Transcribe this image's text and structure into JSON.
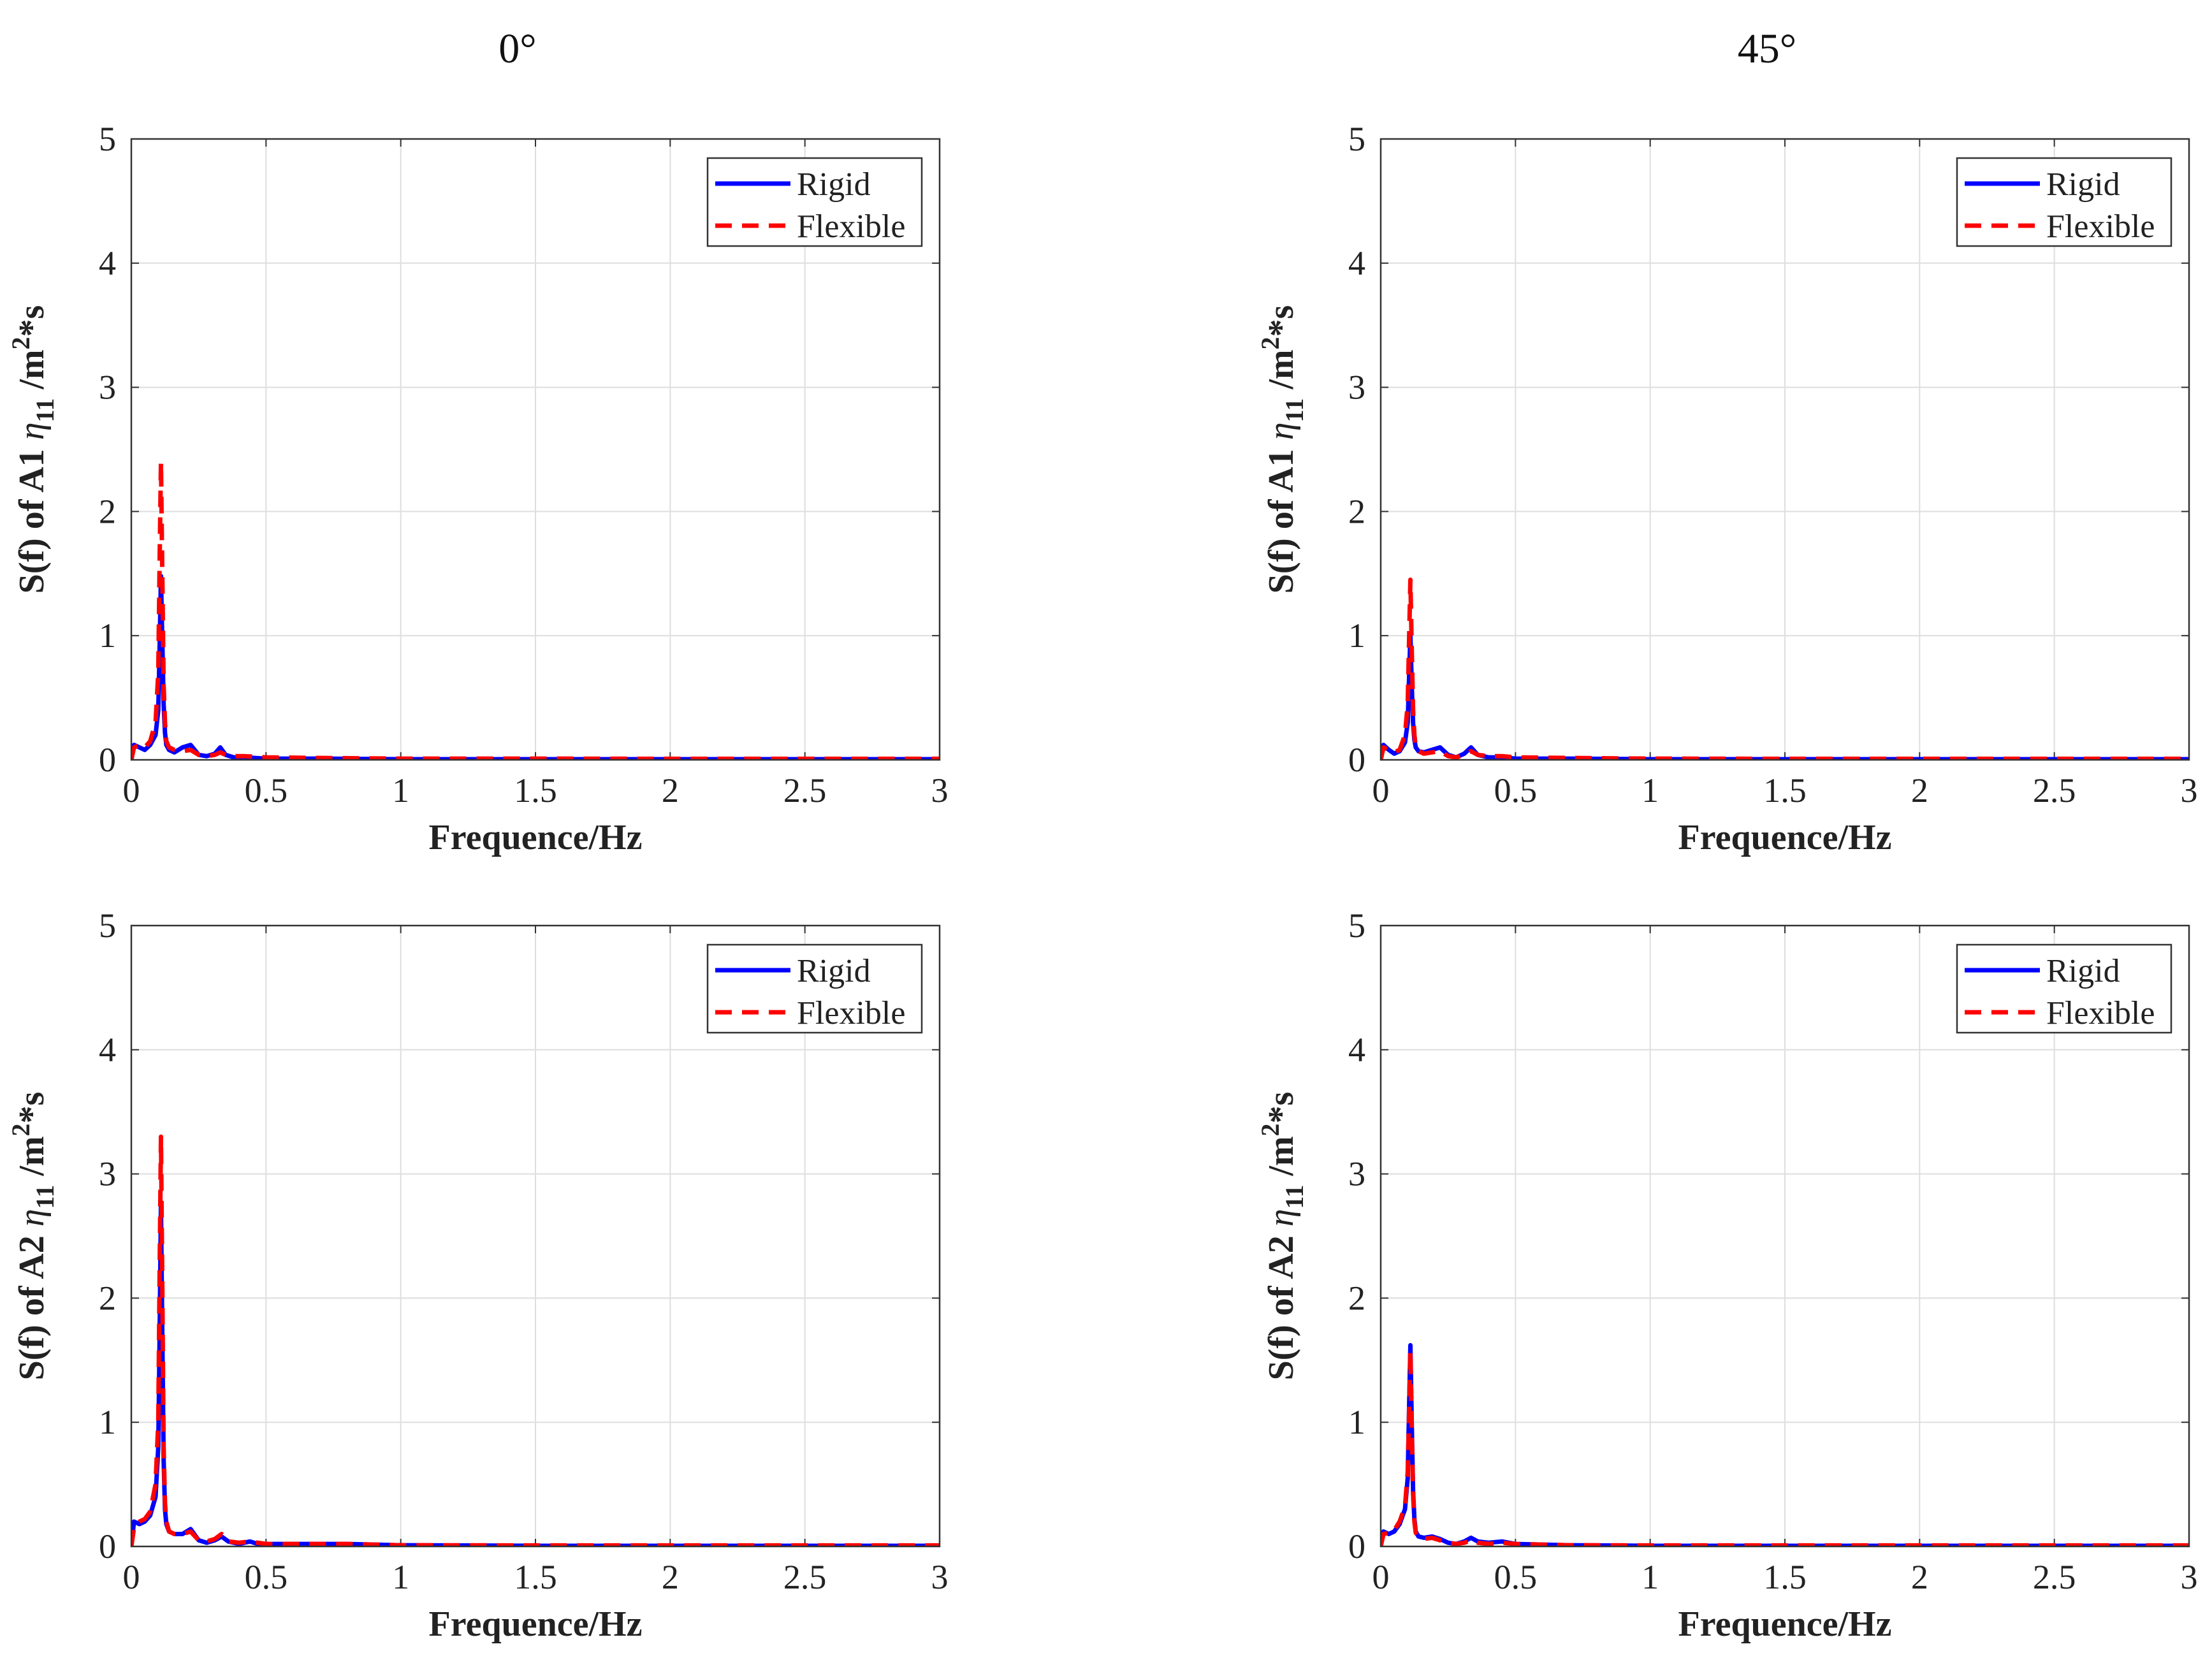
{
  "figure": {
    "column_titles": [
      "0°",
      "45°"
    ]
  },
  "chart_data": [
    {
      "type": "line",
      "title": "",
      "column": "0°",
      "xlabel": "Frequence/Hz",
      "ylabel_prefix": "S(f) of A1 ",
      "ylabel_eta": "η",
      "ylabel_sub": "11",
      "ylabel_mid": " /m",
      "ylabel_sup": "2",
      "ylabel_suffix": "*s",
      "xlim": [
        0,
        3
      ],
      "ylim": [
        0,
        5
      ],
      "xticks": [
        "0",
        "0.5",
        "1",
        "1.5",
        "2",
        "2.5",
        "3"
      ],
      "yticks": [
        "0",
        "1",
        "2",
        "3",
        "4",
        "5"
      ],
      "grid": true,
      "legend_position": "top-right",
      "series": [
        {
          "name": "Rigid",
          "color": "#0000ff",
          "style": "solid",
          "x": [
            0,
            0.01,
            0.03,
            0.05,
            0.07,
            0.09,
            0.1,
            0.105,
            0.11,
            0.115,
            0.12,
            0.125,
            0.13,
            0.14,
            0.16,
            0.19,
            0.22,
            0.25,
            0.28,
            0.31,
            0.33,
            0.35,
            0.38,
            0.42,
            0.5,
            0.7,
            1,
            1.5,
            2,
            2.5,
            3
          ],
          "y": [
            0,
            0.12,
            0.1,
            0.08,
            0.12,
            0.2,
            0.4,
            0.9,
            1.48,
            0.95,
            0.45,
            0.22,
            0.12,
            0.08,
            0.06,
            0.1,
            0.12,
            0.04,
            0.03,
            0.05,
            0.1,
            0.04,
            0.02,
            0.02,
            0.01,
            0.01,
            0.005,
            0.005,
            0.005,
            0.005,
            0.005
          ]
        },
        {
          "name": "Flexible",
          "color": "#ff0000",
          "style": "dashed",
          "x": [
            0,
            0.01,
            0.03,
            0.05,
            0.07,
            0.09,
            0.1,
            0.105,
            0.11,
            0.115,
            0.12,
            0.125,
            0.13,
            0.14,
            0.16,
            0.19,
            0.22,
            0.25,
            0.28,
            0.31,
            0.33,
            0.35,
            0.38,
            0.42,
            0.5,
            0.7,
            1,
            1.5,
            2,
            2.5,
            3
          ],
          "y": [
            0,
            0.1,
            0.12,
            0.1,
            0.15,
            0.3,
            0.7,
            1.6,
            2.4,
            1.5,
            0.6,
            0.3,
            0.15,
            0.1,
            0.08,
            0.07,
            0.08,
            0.04,
            0.03,
            0.04,
            0.06,
            0.04,
            0.03,
            0.03,
            0.02,
            0.015,
            0.01,
            0.01,
            0.008,
            0.008,
            0.008
          ]
        }
      ]
    },
    {
      "type": "line",
      "title": "",
      "column": "45°",
      "xlabel": "Frequence/Hz",
      "ylabel_prefix": "S(f) of A1 ",
      "ylabel_eta": "η",
      "ylabel_sub": "11",
      "ylabel_mid": " /m",
      "ylabel_sup": "2",
      "ylabel_suffix": "*s",
      "xlim": [
        0,
        3
      ],
      "ylim": [
        0,
        5
      ],
      "xticks": [
        "0",
        "0.5",
        "1",
        "1.5",
        "2",
        "2.5",
        "3"
      ],
      "yticks": [
        "0",
        "1",
        "2",
        "3",
        "4",
        "5"
      ],
      "grid": true,
      "legend_position": "top-right",
      "series": [
        {
          "name": "Rigid",
          "color": "#0000ff",
          "style": "solid",
          "x": [
            0,
            0.01,
            0.03,
            0.05,
            0.07,
            0.09,
            0.1,
            0.105,
            0.11,
            0.115,
            0.12,
            0.125,
            0.13,
            0.14,
            0.16,
            0.19,
            0.22,
            0.25,
            0.28,
            0.31,
            0.335,
            0.36,
            0.4,
            0.45,
            0.5,
            0.7,
            1,
            1.5,
            2,
            2.5,
            3
          ],
          "y": [
            0,
            0.12,
            0.08,
            0.05,
            0.07,
            0.14,
            0.3,
            0.65,
            1.0,
            0.6,
            0.3,
            0.16,
            0.1,
            0.07,
            0.06,
            0.08,
            0.1,
            0.04,
            0.02,
            0.05,
            0.1,
            0.04,
            0.02,
            0.02,
            0.01,
            0.01,
            0.005,
            0.005,
            0.005,
            0.005,
            0.005
          ]
        },
        {
          "name": "Flexible",
          "color": "#ff0000",
          "style": "dashed",
          "x": [
            0,
            0.01,
            0.03,
            0.05,
            0.07,
            0.09,
            0.1,
            0.105,
            0.11,
            0.115,
            0.12,
            0.125,
            0.13,
            0.14,
            0.16,
            0.19,
            0.22,
            0.25,
            0.28,
            0.31,
            0.335,
            0.36,
            0.4,
            0.45,
            0.5,
            0.7,
            1,
            1.5,
            2,
            2.5,
            3
          ],
          "y": [
            0,
            0.1,
            0.08,
            0.06,
            0.08,
            0.2,
            0.45,
            0.95,
            1.45,
            0.9,
            0.4,
            0.2,
            0.1,
            0.07,
            0.05,
            0.06,
            0.07,
            0.03,
            0.02,
            0.04,
            0.07,
            0.04,
            0.03,
            0.03,
            0.02,
            0.015,
            0.01,
            0.008,
            0.008,
            0.008,
            0.008
          ]
        }
      ]
    },
    {
      "type": "line",
      "title": "",
      "column": "0°",
      "xlabel": "Frequence/Hz",
      "ylabel_prefix": "S(f) of A2 ",
      "ylabel_eta": "η",
      "ylabel_sub": "11",
      "ylabel_mid": " /m",
      "ylabel_sup": "2",
      "ylabel_suffix": "*s",
      "xlim": [
        0,
        3
      ],
      "ylim": [
        0,
        5
      ],
      "xticks": [
        "0",
        "0.5",
        "1",
        "1.5",
        "2",
        "2.5",
        "3"
      ],
      "yticks": [
        "0",
        "1",
        "2",
        "3",
        "4",
        "5"
      ],
      "grid": true,
      "legend_position": "top-right",
      "series": [
        {
          "name": "Rigid",
          "color": "#0000ff",
          "style": "solid",
          "x": [
            0,
            0.01,
            0.03,
            0.05,
            0.07,
            0.09,
            0.1,
            0.105,
            0.11,
            0.115,
            0.12,
            0.125,
            0.13,
            0.14,
            0.16,
            0.19,
            0.22,
            0.25,
            0.28,
            0.31,
            0.335,
            0.36,
            0.4,
            0.44,
            0.47,
            0.5,
            0.7,
            0.8,
            1,
            1.5,
            2,
            2.5,
            3
          ],
          "y": [
            0,
            0.2,
            0.18,
            0.2,
            0.25,
            0.4,
            0.8,
            1.7,
            2.75,
            1.7,
            0.7,
            0.3,
            0.18,
            0.12,
            0.1,
            0.1,
            0.14,
            0.05,
            0.03,
            0.05,
            0.08,
            0.04,
            0.02,
            0.04,
            0.02,
            0.02,
            0.02,
            0.02,
            0.01,
            0.005,
            0.005,
            0.005,
            0.005
          ]
        },
        {
          "name": "Flexible",
          "color": "#ff0000",
          "style": "dashed",
          "x": [
            0,
            0.01,
            0.03,
            0.05,
            0.07,
            0.09,
            0.1,
            0.105,
            0.11,
            0.115,
            0.12,
            0.125,
            0.13,
            0.14,
            0.16,
            0.19,
            0.22,
            0.25,
            0.28,
            0.31,
            0.335,
            0.36,
            0.4,
            0.44,
            0.47,
            0.5,
            0.7,
            0.8,
            1,
            1.5,
            2,
            2.5,
            3
          ],
          "y": [
            0,
            0.15,
            0.2,
            0.22,
            0.28,
            0.5,
            1.0,
            2.2,
            3.3,
            2.1,
            0.8,
            0.35,
            0.2,
            0.12,
            0.1,
            0.1,
            0.12,
            0.05,
            0.04,
            0.06,
            0.1,
            0.04,
            0.03,
            0.04,
            0.03,
            0.02,
            0.02,
            0.02,
            0.01,
            0.008,
            0.008,
            0.008,
            0.008
          ]
        }
      ]
    },
    {
      "type": "line",
      "title": "",
      "column": "45°",
      "xlabel": "Frequence/Hz",
      "ylabel_prefix": "S(f) of A2 ",
      "ylabel_eta": "η",
      "ylabel_sub": "11",
      "ylabel_mid": " /m",
      "ylabel_sup": "2",
      "ylabel_suffix": "*s",
      "xlim": [
        0,
        3
      ],
      "ylim": [
        0,
        5
      ],
      "xticks": [
        "0",
        "0.5",
        "1",
        "1.5",
        "2",
        "2.5",
        "3"
      ],
      "yticks": [
        "0",
        "1",
        "2",
        "3",
        "4",
        "5"
      ],
      "grid": true,
      "legend_position": "top-right",
      "series": [
        {
          "name": "Rigid",
          "color": "#0000ff",
          "style": "solid",
          "x": [
            0,
            0.01,
            0.03,
            0.05,
            0.07,
            0.09,
            0.1,
            0.105,
            0.11,
            0.115,
            0.12,
            0.125,
            0.13,
            0.14,
            0.16,
            0.19,
            0.22,
            0.25,
            0.28,
            0.31,
            0.335,
            0.36,
            0.4,
            0.45,
            0.5,
            0.7,
            1,
            1.5,
            2,
            2.5,
            3
          ],
          "y": [
            0,
            0.12,
            0.1,
            0.12,
            0.18,
            0.3,
            0.55,
            1.1,
            1.62,
            1.0,
            0.45,
            0.22,
            0.12,
            0.08,
            0.07,
            0.08,
            0.06,
            0.03,
            0.02,
            0.04,
            0.07,
            0.04,
            0.03,
            0.04,
            0.02,
            0.01,
            0.005,
            0.005,
            0.005,
            0.005,
            0.005
          ]
        },
        {
          "name": "Flexible",
          "color": "#ff0000",
          "style": "dashed",
          "x": [
            0,
            0.01,
            0.03,
            0.05,
            0.07,
            0.09,
            0.1,
            0.105,
            0.11,
            0.115,
            0.12,
            0.125,
            0.13,
            0.14,
            0.16,
            0.19,
            0.22,
            0.25,
            0.28,
            0.31,
            0.335,
            0.36,
            0.4,
            0.45,
            0.5,
            0.7,
            1,
            1.5,
            2,
            2.5,
            3
          ],
          "y": [
            0,
            0.1,
            0.11,
            0.13,
            0.2,
            0.32,
            0.6,
            1.05,
            1.58,
            0.95,
            0.42,
            0.2,
            0.11,
            0.08,
            0.06,
            0.07,
            0.05,
            0.03,
            0.02,
            0.03,
            0.05,
            0.03,
            0.02,
            0.03,
            0.02,
            0.01,
            0.008,
            0.008,
            0.008,
            0.008,
            0.008
          ]
        }
      ]
    }
  ]
}
